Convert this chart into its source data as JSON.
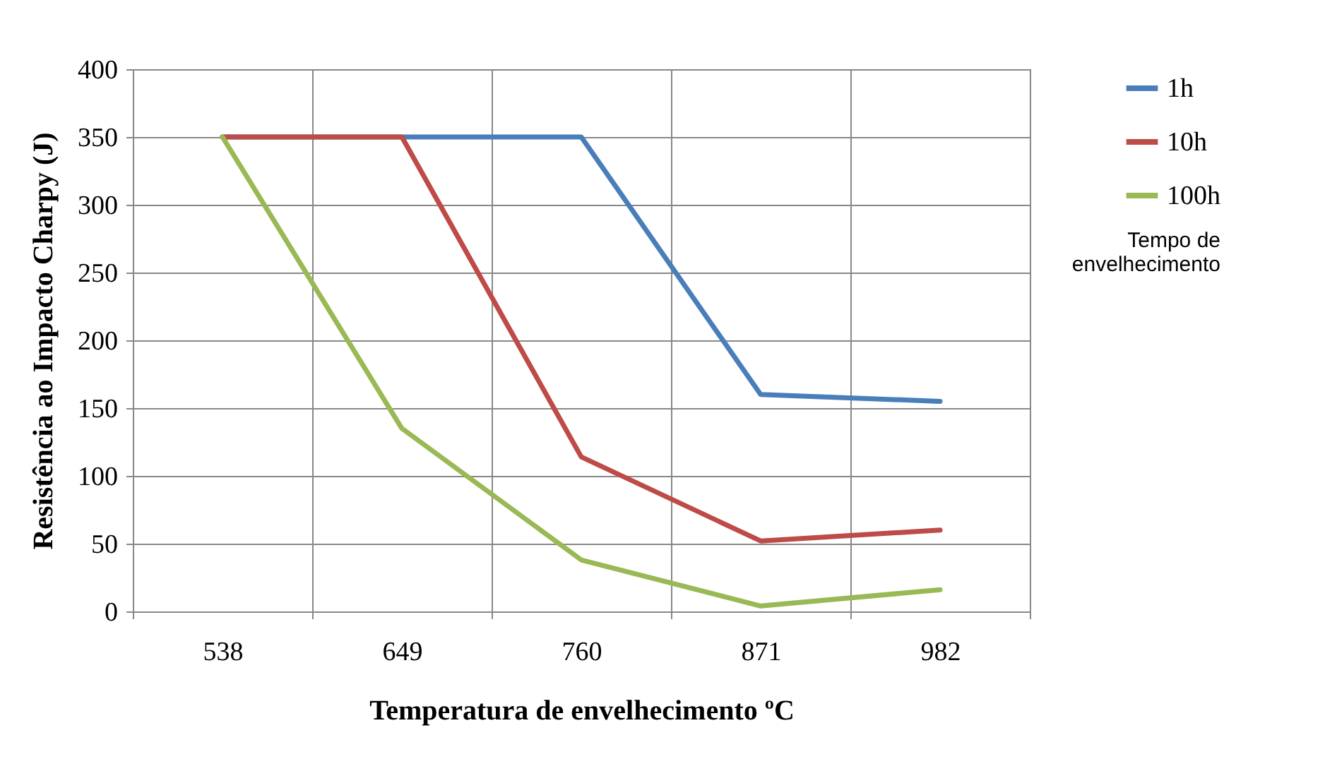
{
  "chart_data": {
    "type": "line",
    "xlabel": "Temperatura de envelhecimento ºC",
    "ylabel": "Resistência ao Impacto Charpy (J)",
    "legend_title": "Tempo de envelhecimento",
    "categories": [
      "538",
      "649",
      "760",
      "871",
      "982"
    ],
    "series": [
      {
        "name": "1h",
        "color": "#4a7ebb",
        "values": [
          350,
          350,
          350,
          160,
          155
        ]
      },
      {
        "name": "10h",
        "color": "#be4b48",
        "values": [
          350,
          350,
          114,
          52,
          60
        ]
      },
      {
        "name": "100h",
        "color": "#98b954",
        "values": [
          350,
          135,
          38,
          4,
          16
        ]
      }
    ],
    "ylim": [
      0,
      400
    ],
    "yticks": [
      0,
      50,
      100,
      150,
      200,
      250,
      300,
      350,
      400
    ],
    "grid": true,
    "legend": "right",
    "marker": "none",
    "line_style": "solid"
  }
}
